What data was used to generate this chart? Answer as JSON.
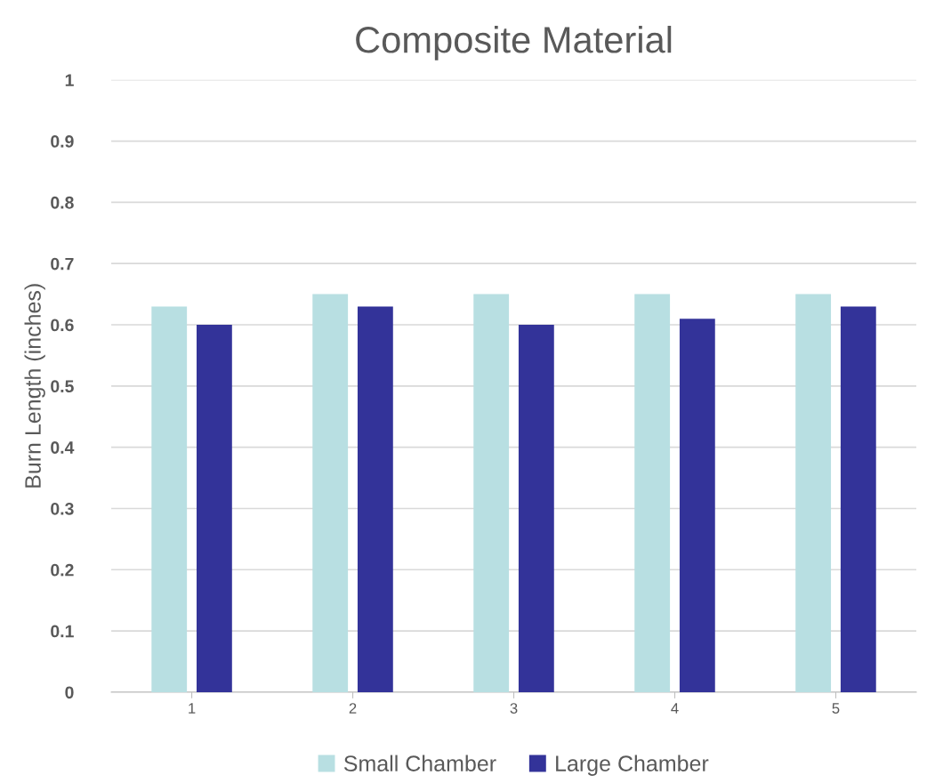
{
  "chart_data": {
    "type": "bar",
    "title": "Composite Material",
    "ylabel": "Burn Length (inches)",
    "categories": [
      "1",
      "2",
      "3",
      "4",
      "5"
    ],
    "series": [
      {
        "name": "Small Chamber",
        "color": "#b8dfe2",
        "values": [
          0.63,
          0.65,
          0.65,
          0.65,
          0.65
        ]
      },
      {
        "name": "Large Chamber",
        "color": "#333399",
        "values": [
          0.6,
          0.63,
          0.6,
          0.61,
          0.63
        ]
      }
    ],
    "ylim": [
      0,
      1
    ],
    "yticks": [
      {
        "value": 0,
        "label": "0"
      },
      0.1,
      0.2,
      0.3,
      0.4,
      0.5,
      0.6,
      0.7,
      0.8,
      0.9,
      {
        "value": 1,
        "label": "1"
      }
    ],
    "grid": "y",
    "legend": "bottom"
  }
}
